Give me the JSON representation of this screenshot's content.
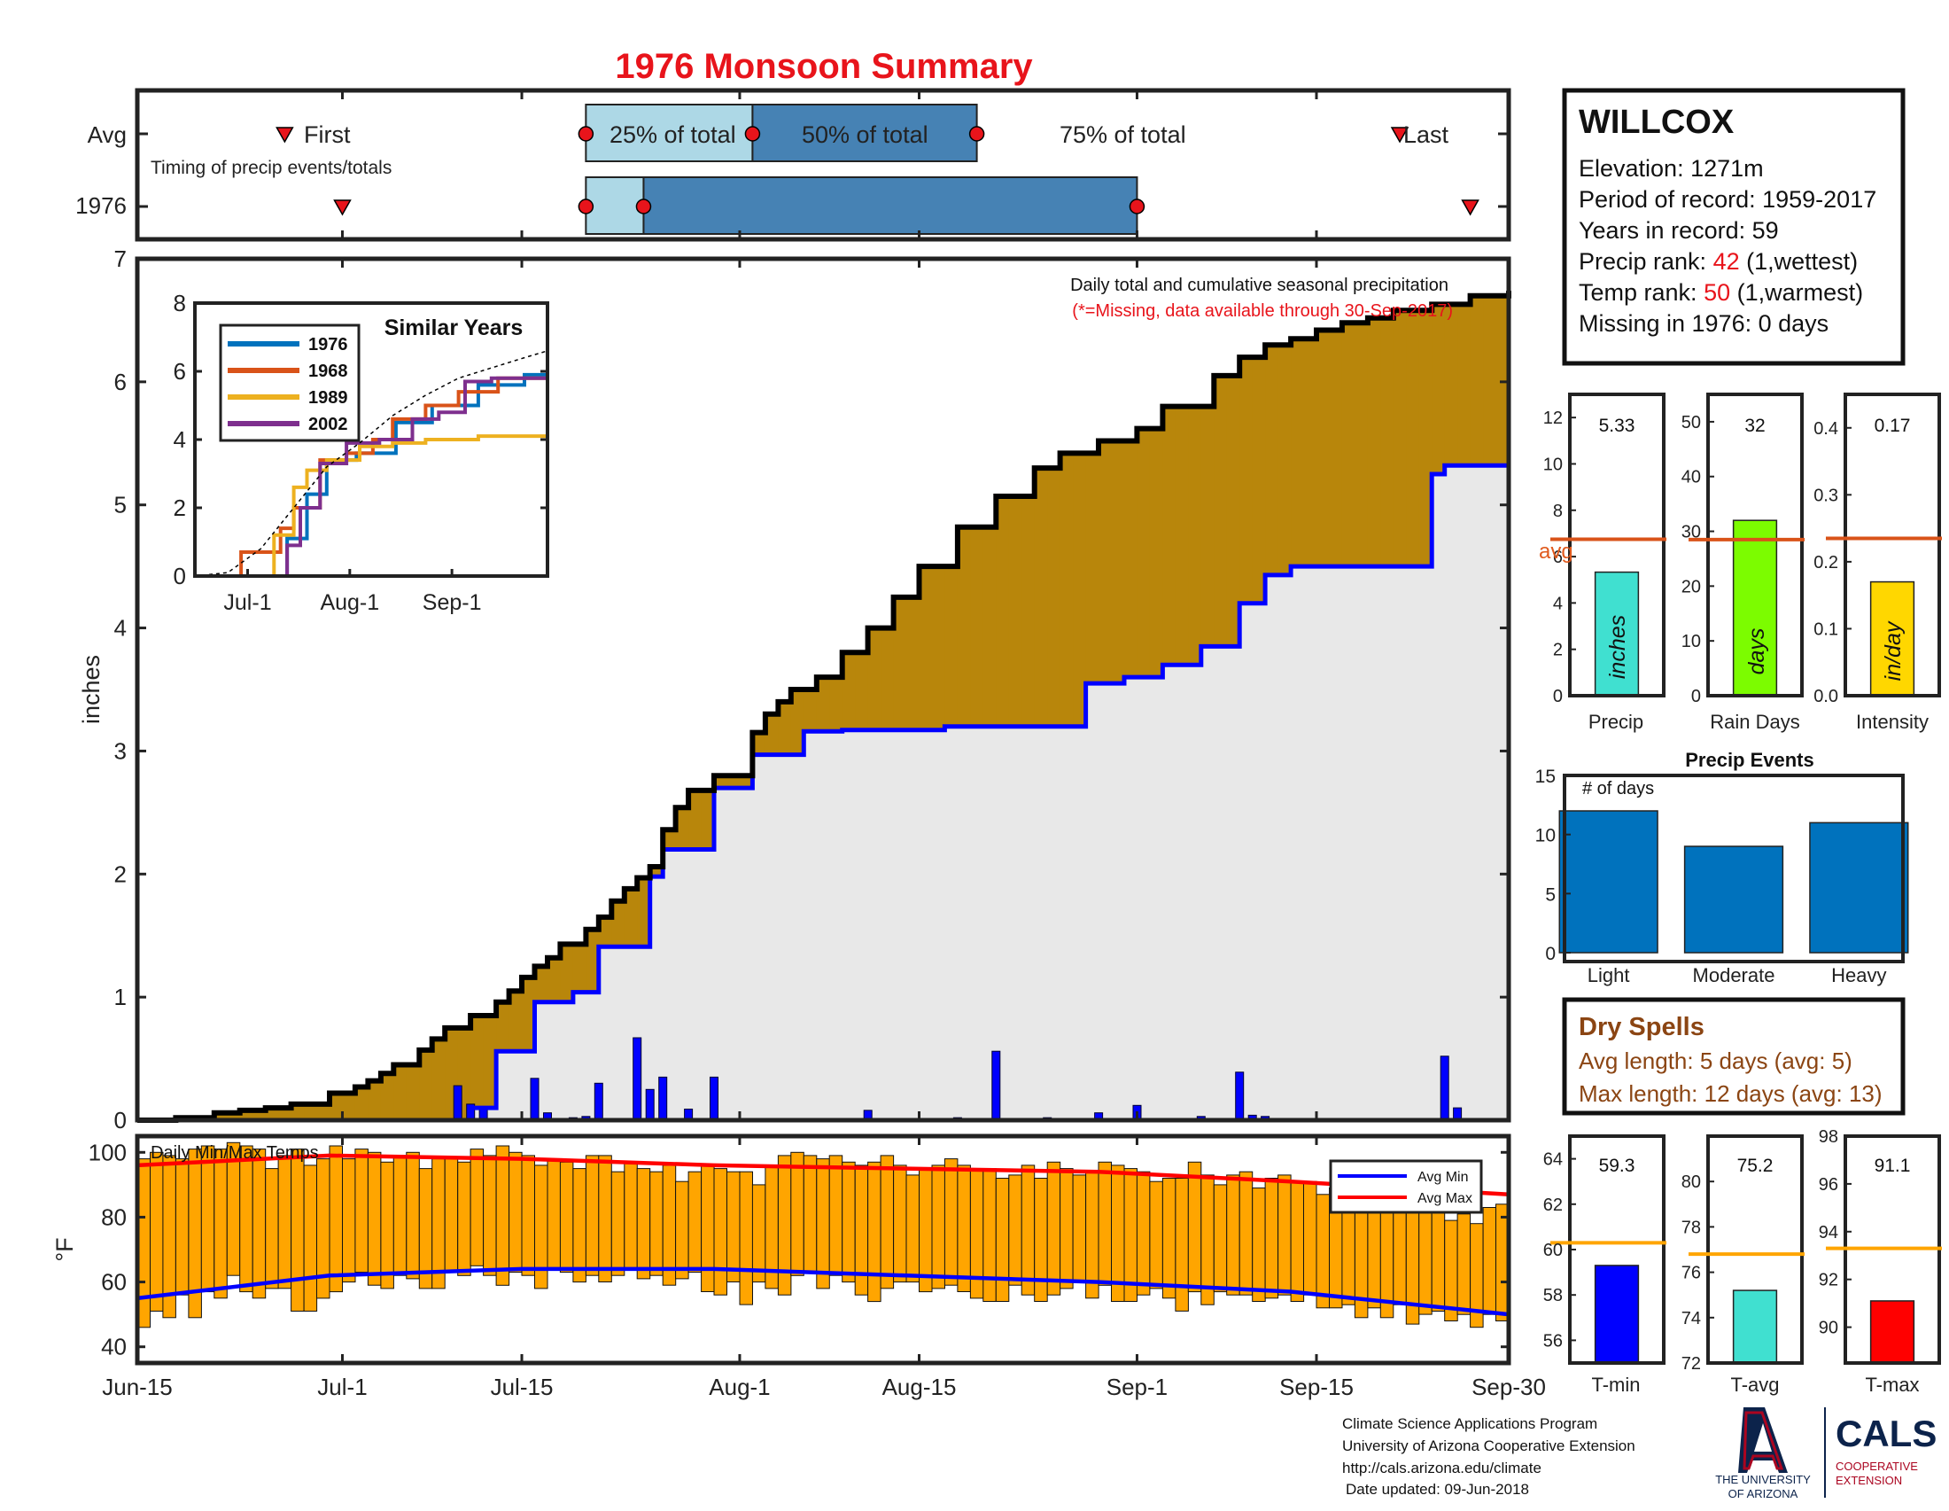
{
  "page_title": "1976 Monsoon Summary",
  "timing": {
    "row_avg_label": "Avg",
    "row_year_label": "1976",
    "subtitle": "Timing of precip events/totals",
    "first_label": "First",
    "last_label": "Last",
    "p25_label": "25% of total",
    "p50_label": "50% of total",
    "p75_label": "75% of total"
  },
  "station": {
    "name": "WILLCOX",
    "elevation_line": "Elevation: 1271m",
    "period_line": "Period of record: 1959-2017",
    "years_line": "Years in record: 59",
    "precip_rank_prefix": "Precip rank: ",
    "precip_rank_value": "42",
    "precip_rank_suffix": " (1,wettest)",
    "temp_rank_prefix": "Temp rank: ",
    "temp_rank_value": "50",
    "temp_rank_suffix": " (1,warmest)",
    "missing_line": "Missing in 1976: 0 days"
  },
  "main_chart": {
    "title": "Daily total and cumulative seasonal precipitation",
    "note": "(*=Missing, data available through 30-Sep-2017)",
    "ylabel": "inches"
  },
  "inset": {
    "title": "Similar Years"
  },
  "stats": {
    "precip": {
      "value": "5.33",
      "unit": "inches",
      "xlabel": "Precip",
      "avg_label": "avg"
    },
    "raindays": {
      "value": "32",
      "unit": "days",
      "xlabel": "Rain Days"
    },
    "intensity": {
      "value": "0.17",
      "unit": "in/day",
      "xlabel": "Intensity"
    }
  },
  "events": {
    "title": "Precip Events",
    "ylabel": "# of days"
  },
  "dry_spells": {
    "title": "Dry Spells",
    "avg_line": "Avg length: 5 days (avg: 5)",
    "max_line": "Max length: 12 days (avg: 13)"
  },
  "temps": {
    "title": "Daily Min/Max Temps",
    "ylabel": "°F",
    "legend_min": "Avg Min",
    "legend_max": "Avg Max"
  },
  "temp_stats": {
    "tmin": {
      "value": "59.3",
      "xlabel": "T-min"
    },
    "tavg": {
      "value": "75.2",
      "xlabel": "T-avg"
    },
    "tmax": {
      "value": "91.1",
      "xlabel": "T-max"
    }
  },
  "footer": {
    "line1": "Climate Science Applications Program",
    "line2": "University of Arizona Cooperative Extension",
    "line3": "http://cals.arizona.edu/climate",
    "line4": "Date updated: 09-Jun-2018"
  },
  "logos": {
    "ua_line1": "THE UNIVERSITY",
    "ua_line2": "OF ARIZONA",
    "cals": "CALS",
    "coop1": "COOPERATIVE",
    "coop2": "EXTENSION"
  },
  "colors": {
    "title_red": "#e8141b",
    "light_blue": "#add8e6",
    "steel_blue": "#4682b4",
    "cumulative_fill": "#b8860b",
    "surplus_fill": "#228b22",
    "avg_line": "#0000ff",
    "normal_fill": "#e8e8e8",
    "daily_bars": "#0000ff",
    "temp_bars": "#ffa500",
    "avg_min": "#0000ff",
    "avg_max": "#ff0000",
    "dry_spells": "#8b4513",
    "events_bars": "#0072bd",
    "ua_navy": "#0c234b",
    "ua_red": "#ab0520"
  },
  "chart_data": [
    {
      "type": "area",
      "title": "Daily total and cumulative seasonal precipitation",
      "ylabel": "inches",
      "ylim": [
        0,
        7
      ],
      "x_ticks": [
        "Jun-15",
        "Jul-1",
        "Jul-15",
        "Aug-1",
        "Aug-15",
        "Sep-1",
        "Sep-15",
        "Sep-30"
      ],
      "x_range_day_of_season": [
        0,
        107
      ],
      "series": [
        {
          "name": "1976",
          "x_day": [
            0,
            3,
            6,
            8,
            10,
            12,
            15,
            17,
            18,
            19,
            20,
            22,
            23,
            24,
            26,
            28,
            29,
            30,
            31,
            32,
            33,
            35,
            36,
            37,
            38,
            39,
            40,
            41,
            42,
            43,
            45,
            48,
            49,
            50,
            51,
            53,
            55,
            57,
            59,
            61,
            64,
            67,
            70,
            72,
            75,
            78,
            80,
            84,
            86,
            88,
            90,
            92,
            94,
            96,
            98,
            101,
            104,
            107
          ],
          "y": [
            0,
            0.02,
            0.06,
            0.08,
            0.1,
            0.13,
            0.22,
            0.27,
            0.32,
            0.38,
            0.45,
            0.57,
            0.66,
            0.75,
            0.85,
            0.96,
            1.05,
            1.16,
            1.25,
            1.32,
            1.43,
            1.55,
            1.65,
            1.78,
            1.88,
            1.97,
            2.06,
            2.36,
            2.54,
            2.68,
            2.8,
            3.15,
            3.3,
            3.4,
            3.5,
            3.6,
            3.8,
            4.0,
            4.25,
            4.5,
            4.82,
            5.07,
            5.3,
            5.42,
            5.52,
            5.62,
            5.8,
            6.05,
            6.2,
            6.3,
            6.35,
            6.42,
            6.48,
            6.52,
            6.58,
            6.63,
            6.7,
            6.74
          ]
        },
        {
          "name": "Average cumulative",
          "x_day": [
            0,
            20,
            26,
            28,
            31,
            34,
            36,
            40,
            41,
            45,
            48,
            52,
            55,
            57,
            63,
            66,
            74,
            77,
            80,
            83,
            86,
            88,
            90,
            100,
            101,
            102,
            105,
            107
          ],
          "y": [
            0,
            0,
            0.1,
            0.56,
            0.96,
            1.04,
            1.41,
            1.98,
            2.2,
            2.7,
            2.97,
            3.16,
            3.17,
            3.17,
            3.2,
            3.2,
            3.55,
            3.6,
            3.7,
            3.85,
            4.2,
            4.43,
            4.5,
            4.5,
            5.25,
            5.32,
            5.32,
            5.32
          ]
        },
        {
          "name": "Daily precip",
          "x_day": [
            25,
            26,
            27,
            31,
            32,
            34,
            35,
            36,
            39,
            40,
            41,
            43,
            45,
            57,
            64,
            67,
            71,
            75,
            78,
            83,
            86,
            87,
            88,
            102,
            103
          ],
          "y": [
            0.28,
            0.13,
            0.1,
            0.34,
            0.06,
            0.02,
            0.03,
            0.3,
            0.67,
            0.25,
            0.35,
            0.09,
            0.35,
            0.08,
            0.02,
            0.56,
            0.02,
            0.06,
            0.12,
            0.03,
            0.39,
            0.04,
            0.03,
            0.52,
            0.1
          ]
        }
      ]
    },
    {
      "type": "line",
      "title": "Similar Years",
      "x_ticks": [
        "Jul-1",
        "Aug-1",
        "Sep-1"
      ],
      "ylim": [
        0,
        8
      ],
      "series": [
        {
          "name": "1976",
          "x_day": [
            0,
            20,
            28,
            34,
            40,
            49,
            57,
            61,
            72,
            86,
            100,
            107
          ],
          "y": [
            0,
            0,
            1.1,
            2.4,
            3.4,
            3.6,
            3.6,
            4.5,
            5.0,
            5.6,
            5.9,
            6.0
          ]
        },
        {
          "name": "1968",
          "x_day": [
            0,
            12,
            14,
            22,
            26,
            30,
            38,
            46,
            54,
            60,
            70,
            80,
            92,
            107
          ],
          "y": [
            0,
            0,
            0.7,
            0.7,
            1.4,
            2.0,
            3.4,
            3.6,
            4.0,
            4.6,
            5.0,
            5.4,
            5.8,
            6.0
          ]
        },
        {
          "name": "1989",
          "x_day": [
            0,
            20,
            24,
            30,
            34,
            40,
            50,
            60,
            70,
            76,
            86,
            107
          ],
          "y": [
            0,
            0,
            1.2,
            2.6,
            3.1,
            3.4,
            3.8,
            3.9,
            4.0,
            4.0,
            4.1,
            4.2
          ]
        },
        {
          "name": "2002",
          "x_day": [
            0,
            24,
            28,
            32,
            38,
            46,
            56,
            66,
            74,
            82,
            90,
            107
          ],
          "y": [
            0,
            0,
            0.9,
            2.0,
            3.3,
            3.9,
            4.0,
            4.6,
            4.8,
            5.7,
            5.8,
            5.8
          ]
        },
        {
          "name": "Average",
          "x_day": [
            0,
            10,
            20,
            30,
            40,
            50,
            60,
            70,
            80,
            90,
            100,
            107
          ],
          "y": [
            0,
            0.1,
            0.8,
            2.0,
            3.2,
            3.9,
            4.7,
            5.3,
            5.8,
            6.1,
            6.4,
            6.6
          ]
        }
      ]
    },
    {
      "type": "bar",
      "title": "Precip",
      "categories": [
        "Precip"
      ],
      "values": [
        5.33
      ],
      "avg": 6.75,
      "ylim": [
        0,
        13
      ],
      "yticks": [
        0,
        2,
        4,
        6,
        8,
        10,
        12
      ]
    },
    {
      "type": "bar",
      "title": "Rain Days",
      "categories": [
        "Rain Days"
      ],
      "values": [
        32
      ],
      "avg": 28.5,
      "ylim": [
        0,
        55
      ],
      "yticks": [
        0,
        10,
        20,
        30,
        40,
        50
      ]
    },
    {
      "type": "bar",
      "title": "Intensity",
      "categories": [
        "Intensity"
      ],
      "values": [
        0.17
      ],
      "avg": 0.235,
      "ylim": [
        0,
        0.45
      ],
      "yticks": [
        0,
        0.1,
        0.2,
        0.3,
        0.4
      ]
    },
    {
      "type": "bar",
      "title": "Precip Events",
      "ylabel": "# of days",
      "categories": [
        "Light",
        "Moderate",
        "Heavy"
      ],
      "values": [
        12,
        9,
        11
      ],
      "ylim": [
        0,
        15
      ],
      "yticks": [
        0,
        5,
        10,
        15
      ]
    },
    {
      "type": "bar",
      "title": "Daily Min/Max Temps",
      "ylabel": "°F",
      "ylim": [
        35,
        105
      ],
      "yticks": [
        40,
        60,
        80,
        100
      ],
      "x_ticks": [
        "Jun-15",
        "Jul-1",
        "Jul-15",
        "Aug-1",
        "Aug-15",
        "Sep-1",
        "Sep-15",
        "Sep-30"
      ],
      "daily_max": [
        98,
        100,
        99,
        98,
        101,
        102,
        101,
        103,
        102,
        101,
        95,
        99,
        101,
        96,
        98,
        102,
        98,
        101,
        100,
        97,
        99,
        100,
        95,
        98,
        98,
        97,
        101,
        99,
        102,
        100,
        99,
        96,
        98,
        97,
        95,
        99,
        99,
        94,
        97,
        95,
        94,
        96,
        91,
        94,
        96,
        95,
        94,
        94,
        90,
        96,
        99,
        100,
        99,
        98,
        99,
        97,
        96,
        97,
        99,
        96,
        93,
        95,
        96,
        98,
        96,
        95,
        95,
        92,
        93,
        96,
        92,
        97,
        95,
        93,
        94,
        97,
        96,
        95,
        94,
        91,
        92,
        92,
        97,
        93,
        90,
        93,
        94,
        89,
        92,
        93,
        91,
        91,
        87,
        89,
        91,
        89,
        84,
        88,
        90,
        86,
        85,
        83,
        79,
        81,
        78,
        83,
        84
      ],
      "daily_min": [
        46,
        51,
        49,
        56,
        49,
        57,
        55,
        62,
        57,
        55,
        58,
        58,
        51,
        51,
        55,
        57,
        60,
        63,
        59,
        58,
        62,
        61,
        58,
        58,
        63,
        62,
        65,
        62,
        59,
        63,
        62,
        58,
        64,
        63,
        60,
        62,
        60,
        62,
        64,
        61,
        62,
        59,
        61,
        63,
        57,
        56,
        60,
        53,
        60,
        58,
        56,
        62,
        63,
        58,
        62,
        60,
        56,
        54,
        58,
        60,
        60,
        57,
        58,
        59,
        57,
        55,
        54,
        54,
        59,
        56,
        54,
        56,
        58,
        60,
        55,
        59,
        54,
        54,
        56,
        58,
        55,
        51,
        57,
        53,
        57,
        56,
        56,
        54,
        55,
        56,
        54,
        56,
        52,
        52,
        53,
        49,
        52,
        49,
        53,
        47,
        50,
        51,
        48,
        50,
        46,
        50,
        48
      ],
      "avg_max": [
        {
          "x_day": 0,
          "y": 96
        },
        {
          "x_day": 15,
          "y": 99
        },
        {
          "x_day": 30,
          "y": 98
        },
        {
          "x_day": 45,
          "y": 96
        },
        {
          "x_day": 60,
          "y": 95
        },
        {
          "x_day": 75,
          "y": 94
        },
        {
          "x_day": 90,
          "y": 91
        },
        {
          "x_day": 107,
          "y": 87
        }
      ],
      "avg_min": [
        {
          "x_day": 0,
          "y": 55
        },
        {
          "x_day": 15,
          "y": 62
        },
        {
          "x_day": 30,
          "y": 64
        },
        {
          "x_day": 45,
          "y": 64
        },
        {
          "x_day": 60,
          "y": 62
        },
        {
          "x_day": 75,
          "y": 60
        },
        {
          "x_day": 90,
          "y": 57
        },
        {
          "x_day": 107,
          "y": 50
        }
      ]
    },
    {
      "type": "bar",
      "title": "T-min",
      "categories": [
        "T-min"
      ],
      "values": [
        59.3
      ],
      "avg": 60.3,
      "ylim": [
        55,
        65
      ],
      "yticks": [
        56,
        58,
        60,
        62,
        64
      ]
    },
    {
      "type": "bar",
      "title": "T-avg",
      "categories": [
        "T-avg"
      ],
      "values": [
        75.2
      ],
      "avg": 76.8,
      "ylim": [
        72,
        82
      ],
      "yticks": [
        72,
        74,
        76,
        78,
        80
      ]
    },
    {
      "type": "bar",
      "title": "T-max",
      "categories": [
        "T-max"
      ],
      "values": [
        91.1
      ],
      "avg": 93.3,
      "ylim": [
        88.5,
        98
      ],
      "yticks": [
        90,
        92,
        94,
        96,
        98
      ]
    }
  ]
}
